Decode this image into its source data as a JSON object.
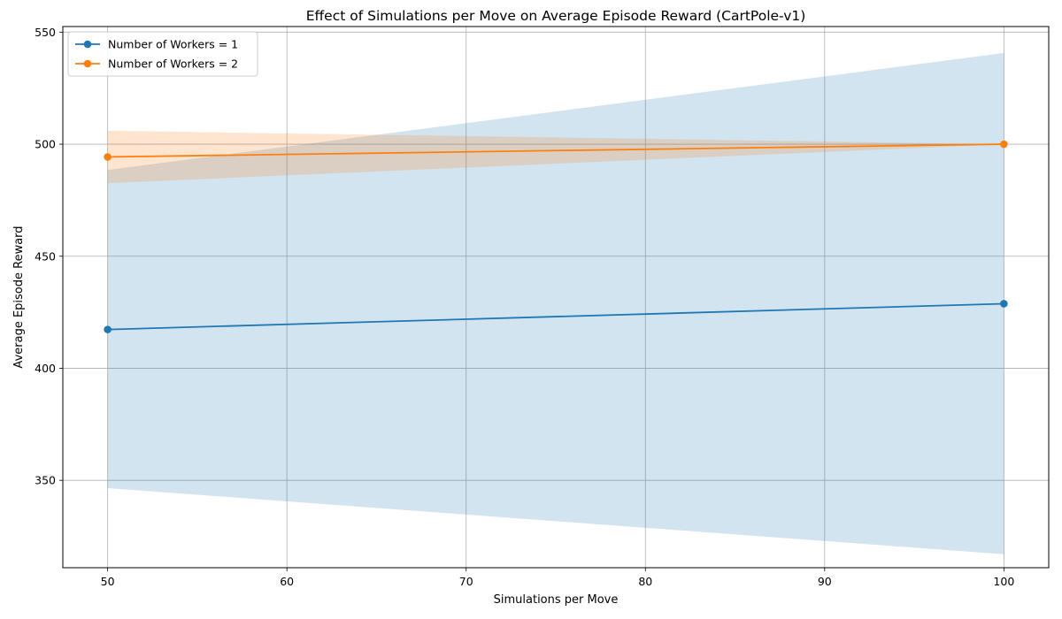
{
  "chart_data": {
    "type": "line",
    "title": "Effect of Simulations per Move on Average Episode Reward (CartPole-v1)",
    "xlabel": "Simulations per Move",
    "ylabel": "Average Episode Reward",
    "xlim": [
      47.5,
      102.5
    ],
    "ylim": [
      311,
      552.5
    ],
    "xticks": [
      50,
      60,
      70,
      80,
      90,
      100
    ],
    "yticks": [
      350,
      400,
      450,
      500,
      550
    ],
    "grid": true,
    "legend_position": "top-left",
    "x": [
      50,
      100
    ],
    "series": [
      {
        "name": "Number of Workers = 1",
        "color": "#1f77b4",
        "values": [
          417.3,
          428.8
        ],
        "band_lower": [
          346.5,
          317.0
        ],
        "band_upper": [
          488.5,
          540.7
        ]
      },
      {
        "name": "Number of Workers = 2",
        "color": "#ff7f0e",
        "values": [
          494.3,
          500.0
        ],
        "band_lower": [
          482.6,
          500.0
        ],
        "band_upper": [
          506.0,
          500.0
        ]
      }
    ]
  }
}
